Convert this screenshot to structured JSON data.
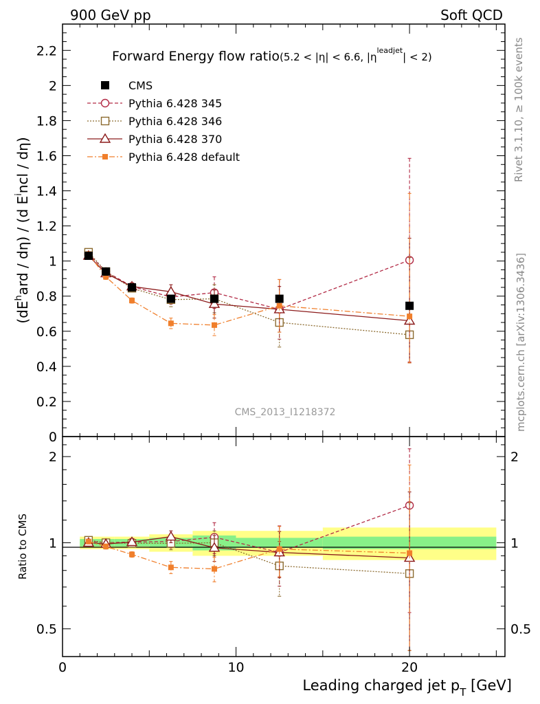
{
  "header": {
    "left": "900 GeV pp",
    "right": "Soft QCD"
  },
  "side_labels": {
    "rivet": "Rivet 3.1.10, ≥ 100k events",
    "mcplots": "mcplots.cern.ch [arXiv:1306.3436]"
  },
  "chart_data": [
    {
      "type": "line",
      "title_main": "Forward Energy flow ratio",
      "title_cond_a": "(5.2 < |η| < 6.6, |η",
      "title_cond_sup": "leadjet",
      "title_cond_b": "| < 2)",
      "ylabel": "(dEhard / dη) / (d Eincl / dη)",
      "ylim": [
        0,
        2.35
      ],
      "xlim": [
        0,
        25.5
      ],
      "yticks": [
        "0",
        "0.2",
        "0.4",
        "0.6",
        "0.8",
        "1",
        "1.2",
        "1.4",
        "1.6",
        "1.8",
        "2",
        "2.2"
      ],
      "watermark": "CMS_2013_I1218372",
      "legend_position": "top-left",
      "x": [
        1.5,
        2.5,
        4.0,
        6.25,
        8.75,
        12.5,
        20.0
      ],
      "series": [
        {
          "name": "CMS",
          "marker": "filled-square",
          "color": "#000000",
          "values": [
            1.03,
            0.94,
            0.85,
            0.785,
            0.785,
            0.785,
            0.745
          ],
          "err": [
            0.01,
            0.01,
            0.01,
            0.01,
            0.01,
            0.01,
            0.01
          ]
        },
        {
          "name": "Pythia 6.428 345",
          "marker": "open-circle",
          "line": "dashed",
          "color": "#b22a45",
          "values": [
            1.04,
            0.94,
            0.855,
            0.795,
            0.82,
            0.725,
            1.005
          ],
          "err": [
            0.01,
            0.015,
            0.02,
            0.04,
            0.09,
            0.17,
            0.58
          ]
        },
        {
          "name": "Pythia 6.428 346",
          "marker": "open-square",
          "line": "dotted",
          "color": "#8b6a2e",
          "values": [
            1.05,
            0.94,
            0.845,
            0.78,
            0.785,
            0.65,
            0.58
          ],
          "err": [
            0.01,
            0.015,
            0.02,
            0.04,
            0.08,
            0.14,
            0.44
          ]
        },
        {
          "name": "Pythia 6.428 370",
          "marker": "open-triangle",
          "line": "solid",
          "color": "#8b1a1a",
          "values": [
            1.03,
            0.93,
            0.855,
            0.825,
            0.755,
            0.725,
            0.66
          ],
          "err": [
            0.01,
            0.015,
            0.02,
            0.04,
            0.08,
            0.13,
            0.47
          ]
        },
        {
          "name": "Pythia 6.428 default",
          "marker": "filled-small-square",
          "line": "dashdot",
          "color": "#f07f2c",
          "values": [
            1.04,
            0.91,
            0.775,
            0.645,
            0.635,
            0.745,
            0.685
          ],
          "err": [
            0.01,
            0.015,
            0.015,
            0.03,
            0.06,
            0.15,
            0.7
          ]
        }
      ]
    },
    {
      "type": "line",
      "ylabel": "Ratio to CMS",
      "xlabel": "Leading charged jet p",
      "xlabel_sub": "T",
      "xlabel_unit": " [GeV]",
      "ylim": [
        0.4,
        2.35
      ],
      "log_y": true,
      "yticks": [
        "0.5",
        "1",
        "2"
      ],
      "xticks": [
        "0",
        "10",
        "20"
      ],
      "x": [
        1.5,
        2.5,
        4.0,
        6.25,
        8.75,
        12.5,
        20.0
      ],
      "bin_edges": [
        1,
        2,
        3,
        5,
        7.5,
        10,
        15,
        25
      ],
      "band_inner": [
        0.03,
        0.03,
        0.03,
        0.04,
        0.06,
        0.04,
        0.05
      ],
      "band_outer": [
        0.05,
        0.05,
        0.05,
        0.07,
        0.1,
        0.1,
        0.13
      ],
      "series": [
        {
          "name": "Pythia 6.428 345",
          "values": [
            1.01,
            1.0,
            1.005,
            1.01,
            1.045,
            0.925,
            1.35
          ],
          "err": [
            0.02,
            0.02,
            0.025,
            0.05,
            0.13,
            0.22,
            0.78
          ]
        },
        {
          "name": "Pythia 6.428 346",
          "values": [
            1.02,
            1.0,
            0.995,
            0.995,
            1.0,
            0.83,
            0.78
          ],
          "err": [
            0.02,
            0.02,
            0.025,
            0.05,
            0.1,
            0.18,
            0.6
          ]
        },
        {
          "name": "Pythia 6.428 370",
          "values": [
            1.0,
            0.99,
            1.005,
            1.05,
            0.96,
            0.925,
            0.885
          ],
          "err": [
            0.02,
            0.02,
            0.025,
            0.05,
            0.1,
            0.17,
            0.62
          ]
        },
        {
          "name": "Pythia 6.428 default",
          "values": [
            1.01,
            0.97,
            0.91,
            0.82,
            0.81,
            0.95,
            0.92
          ],
          "err": [
            0.02,
            0.02,
            0.02,
            0.04,
            0.08,
            0.19,
            0.95
          ]
        }
      ]
    }
  ]
}
